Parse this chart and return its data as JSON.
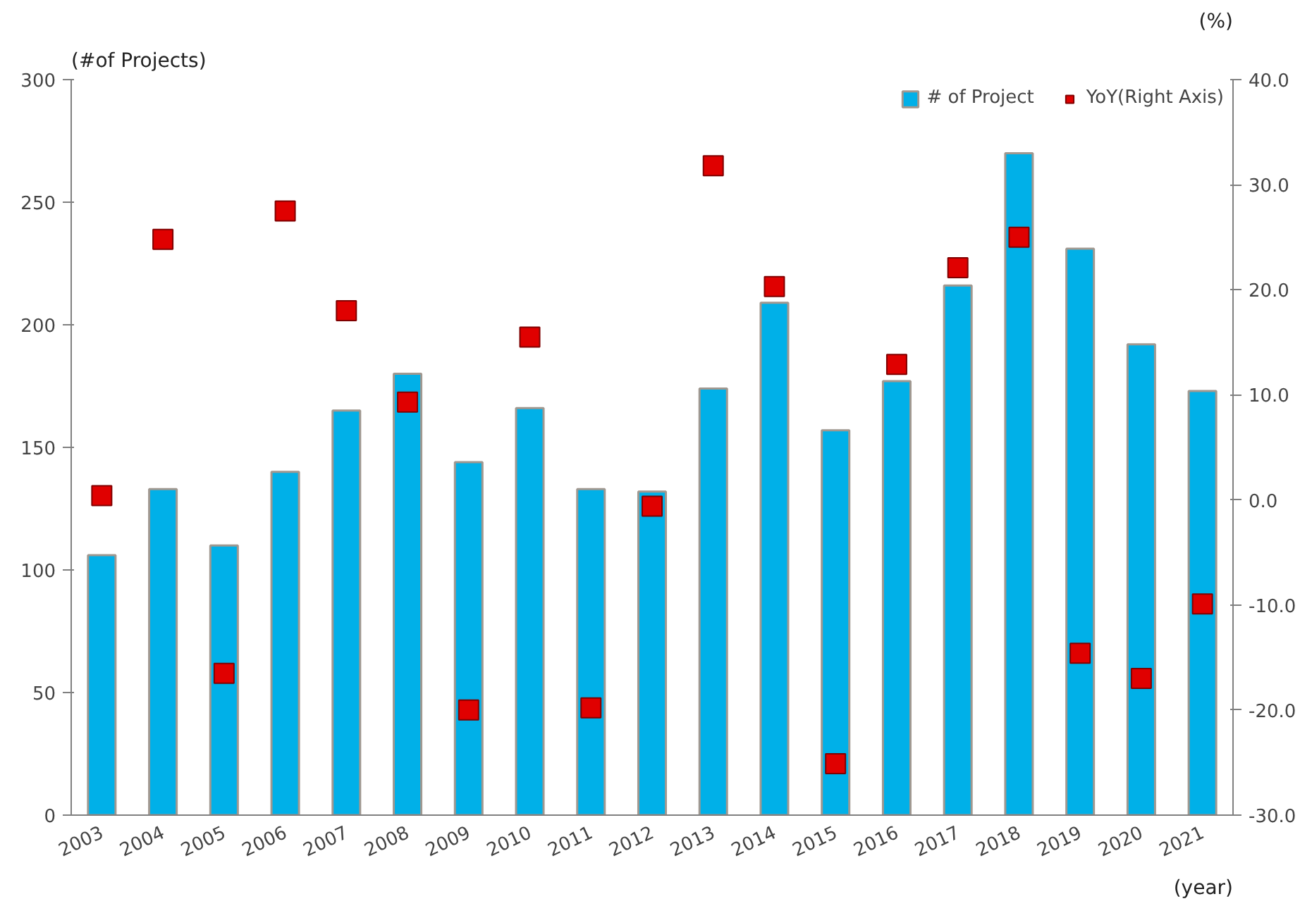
{
  "chart_data": {
    "type": "bar",
    "ylabel": "(#of Projects)",
    "y2label": "(%)",
    "xlabel": "(year)",
    "categories": [
      "2003",
      "2004",
      "2005",
      "2006",
      "2007",
      "2008",
      "2009",
      "2010",
      "2011",
      "2012",
      "2013",
      "2014",
      "2015",
      "2016",
      "2017",
      "2018",
      "2019",
      "2020",
      "2021"
    ],
    "series": [
      {
        "name": "# of Project",
        "color": "#00b0e8",
        "values": [
          106,
          133,
          110,
          140,
          165,
          180,
          144,
          166,
          133,
          132,
          174,
          209,
          157,
          177,
          216,
          270,
          231,
          192,
          173
        ]
      },
      {
        "name": "YoY(Right Axis)",
        "type": "scatter",
        "axis": "y2",
        "marker": "square",
        "color": "#e00000",
        "values": [
          0.4,
          24.8,
          -16.5,
          27.5,
          18.0,
          9.3,
          -20.0,
          15.5,
          -19.8,
          -0.6,
          31.8,
          20.3,
          -25.1,
          12.9,
          22.1,
          25.0,
          -14.6,
          -17.0,
          -9.9
        ]
      }
    ],
    "ylim": [
      0,
      300
    ],
    "yticks": [
      0,
      50,
      100,
      150,
      200,
      250,
      300
    ],
    "y2lim": [
      -30,
      40
    ],
    "y2ticks": [
      {
        "value": -30,
        "label": "-30.0"
      },
      {
        "value": -20,
        "label": "-20.0"
      },
      {
        "value": -10,
        "label": "-10.0"
      },
      {
        "value": 0,
        "label": "0.0"
      },
      {
        "value": 10,
        "label": "10.0"
      },
      {
        "value": 20,
        "label": "20.0"
      },
      {
        "value": 30,
        "label": "30.0"
      },
      {
        "value": 40,
        "label": "40.0"
      }
    ],
    "grid": false,
    "legend": "top right"
  }
}
